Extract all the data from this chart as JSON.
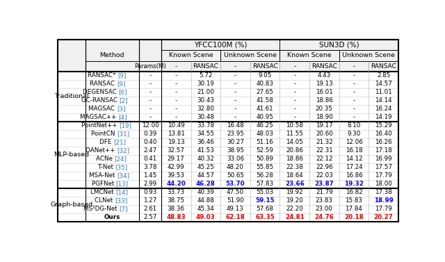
{
  "groups": [
    {
      "name": "Traditional",
      "rows": [
        {
          "method": "RANSAC* ",
          "ref": "[9]",
          "params": "-",
          "v": [
            "-",
            "5.72",
            "-",
            "9.05",
            "-",
            "4.43",
            "-",
            "2.85"
          ],
          "highlight": [],
          "highlight_color": "none"
        },
        {
          "method": "RANSAC ",
          "ref": "[9]",
          "params": "-",
          "v": [
            "-",
            "30.19",
            "-",
            "40.83",
            "-",
            "19.13",
            "-",
            "14.57"
          ],
          "highlight": [],
          "highlight_color": "none"
        },
        {
          "method": "DEGENSAC ",
          "ref": "[6]",
          "params": "-",
          "v": [
            "-",
            "21.00",
            "-",
            "27.65",
            "-",
            "16.01",
            "-",
            "11.01"
          ],
          "highlight": [],
          "highlight_color": "none"
        },
        {
          "method": "GC-RANSAC ",
          "ref": "[2]",
          "params": "-",
          "v": [
            "-",
            "30.43",
            "-",
            "41.58",
            "-",
            "18.86",
            "-",
            "14.14"
          ],
          "highlight": [],
          "highlight_color": "none"
        },
        {
          "method": "MAGSAC ",
          "ref": "[3]",
          "params": "-",
          "v": [
            "-",
            "32.80",
            "-",
            "41.61",
            "-",
            "20.35",
            "-",
            "16.24"
          ],
          "highlight": [],
          "highlight_color": "none"
        },
        {
          "method": "MAGSAC++ ",
          "ref": "[4]",
          "params": "-",
          "v": [
            "-",
            "30.48",
            "-",
            "40.95",
            "-",
            "18.90",
            "-",
            "14.19"
          ],
          "highlight": [],
          "highlight_color": "none"
        }
      ]
    },
    {
      "name": "MLP-based",
      "rows": [
        {
          "method": "PointNet++ ",
          "ref": "[19]",
          "params": "12.00",
          "v": [
            "10.49",
            "33.78",
            "16.48",
            "46.25",
            "10.58",
            "19.17",
            "8.10",
            "15.29"
          ],
          "highlight": [],
          "highlight_color": "none"
        },
        {
          "method": "PointCN ",
          "ref": "[31]",
          "params": "0.39",
          "v": [
            "13.81",
            "34.55",
            "23.95",
            "48.03",
            "11.55",
            "20.60",
            "9.30",
            "16.40"
          ],
          "highlight": [],
          "highlight_color": "none"
        },
        {
          "method": "DFE ",
          "ref": "[21]",
          "params": "0.40",
          "v": [
            "19.13",
            "36.46",
            "30.27",
            "51.16",
            "14.05",
            "21.32",
            "12.06",
            "16.26"
          ],
          "highlight": [],
          "highlight_color": "none"
        },
        {
          "method": "OANet++ ",
          "ref": "[32]",
          "params": "2.47",
          "v": [
            "32.57",
            "41.53",
            "38.95",
            "52.59",
            "20.86",
            "22.31",
            "16.18",
            "17.18"
          ],
          "highlight": [],
          "highlight_color": "none"
        },
        {
          "method": "ACNe ",
          "ref": "[24]",
          "params": "0.41",
          "v": [
            "29.17",
            "40.32",
            "33.06",
            "50.89",
            "18.86",
            "22.12",
            "14.12",
            "16.99"
          ],
          "highlight": [],
          "highlight_color": "none"
        },
        {
          "method": "T-Net ",
          "ref": "[35]",
          "params": "3.78",
          "v": [
            "42.99",
            "45.25",
            "48.20",
            "55.85",
            "22.38",
            "22.96",
            "17.24",
            "17.57"
          ],
          "highlight": [],
          "highlight_color": "none"
        },
        {
          "method": "MSA-Net ",
          "ref": "[34]",
          "params": "1.45",
          "v": [
            "39.53",
            "44.57",
            "50.65",
            "56.28",
            "18.64",
            "22.03",
            "16.86",
            "17.79"
          ],
          "highlight": [],
          "highlight_color": "none"
        },
        {
          "method": "PGFNet ",
          "ref": "[13]",
          "params": "2.99",
          "v": [
            "44.20",
            "46.28",
            "53.70",
            "57.83",
            "23.66",
            "23.87",
            "19.32",
            "18.00"
          ],
          "highlight": [
            0,
            1,
            2,
            4,
            5,
            6
          ],
          "highlight_color": "blue"
        }
      ]
    },
    {
      "name": "Graph-based",
      "rows": [
        {
          "method": "LMCNet ",
          "ref": "[14]",
          "params": "0.93",
          "v": [
            "33.73",
            "40.39",
            "47.50",
            "55.03",
            "19.92",
            "21.79",
            "16.82",
            "17.38"
          ],
          "highlight": [],
          "highlight_color": "none"
        },
        {
          "method": "CLNet ",
          "ref": "[33]",
          "params": "1.27",
          "v": [
            "38.75",
            "44.88",
            "51.90",
            "59.15",
            "19.20",
            "23.83",
            "15.83",
            "18.99"
          ],
          "highlight": [
            3,
            7
          ],
          "highlight_color": "blue"
        },
        {
          "method": "MS²DG-Net ",
          "ref": "[7]",
          "params": "2.61",
          "v": [
            "38.36",
            "45.34",
            "49.13",
            "57.68",
            "22.20",
            "23.00",
            "17.84",
            "17.79"
          ],
          "highlight": [],
          "highlight_color": "none"
        },
        {
          "method": "Ours",
          "ref": "",
          "params": "2.57",
          "v": [
            "48.83",
            "49.03",
            "62.18",
            "63.35",
            "24.81",
            "24.76",
            "20.18",
            "20.27"
          ],
          "highlight": [
            0,
            1,
            2,
            3,
            4,
            5,
            6,
            7
          ],
          "highlight_color": "red"
        }
      ]
    }
  ],
  "ref_color": "#3377bb",
  "blue_highlight": "#0000ee",
  "red_highlight": "#dd0000",
  "group_label_color": "#000000",
  "background_color": "#ffffff",
  "header_bg": "#f0f0f0"
}
